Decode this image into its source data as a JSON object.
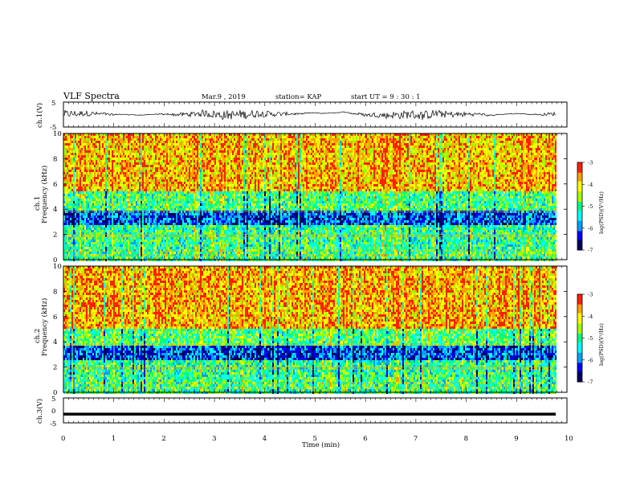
{
  "header": {
    "title": "VLF Spectra",
    "date": "Mar.9 , 2019",
    "station": "station= KAP",
    "start": "start UT = 9 : 30 : 1"
  },
  "chart_data": [
    {
      "type": "line",
      "panel": "ch1-waveform",
      "ylabel": "ch.1(V)",
      "ylim": [
        -5,
        5
      ],
      "yticks": [
        5,
        -5
      ],
      "xlim": [
        0,
        10
      ],
      "color": "#000000",
      "description_values": {
        "baseline_V": 0.1,
        "amplitude_V": 1.8
      }
    },
    {
      "type": "heatmap",
      "panel": "ch1-spectrogram",
      "ylabel": "Frequency (kHz)",
      "channel_label": "ch.1",
      "ylim": [
        0,
        10
      ],
      "yticks": [
        0,
        2,
        4,
        6,
        8,
        10
      ],
      "xlim": [
        0,
        10
      ],
      "colorbar": {
        "label": "log(PSD)(V²/Hz)",
        "ticks": [
          -3,
          -4,
          -5,
          -6,
          -7
        ],
        "range": [
          -7,
          -3
        ]
      },
      "bands_kHz": [
        {
          "from": 0,
          "to": 1.2,
          "level": -5.0
        },
        {
          "from": 1.2,
          "to": 2.8,
          "level": -5.1
        },
        {
          "from": 2.8,
          "to": 3.8,
          "level": -6.2
        },
        {
          "from": 3.8,
          "to": 5.4,
          "level": -5.0
        },
        {
          "from": 5.4,
          "to": 10,
          "level": -3.9
        }
      ]
    },
    {
      "type": "heatmap",
      "panel": "ch2-spectrogram",
      "ylabel": "Frequency (kHz)",
      "channel_label": "ch.2",
      "ylim": [
        0,
        10
      ],
      "yticks": [
        0,
        2,
        4,
        6,
        8,
        10
      ],
      "xlim": [
        0,
        10
      ],
      "colorbar": {
        "label": "log(PSD)(V²/Hz)",
        "ticks": [
          -3,
          -4,
          -5,
          -6,
          -7
        ],
        "range": [
          -7,
          -3
        ]
      },
      "bands_kHz": [
        {
          "from": 0,
          "to": 1.2,
          "level": -5.0
        },
        {
          "from": 1.2,
          "to": 2.6,
          "level": -5.1
        },
        {
          "from": 2.6,
          "to": 3.6,
          "level": -6.2
        },
        {
          "from": 3.6,
          "to": 5.0,
          "level": -4.9
        },
        {
          "from": 5.0,
          "to": 10,
          "level": -3.8
        }
      ]
    },
    {
      "type": "line",
      "panel": "ch3-waveform",
      "ylabel": "ch.3(V)",
      "ylim": [
        -5,
        5
      ],
      "yticks": [
        5,
        0,
        -5
      ],
      "xlim": [
        0,
        10
      ],
      "constant_V": -1.5,
      "color": "#000000",
      "xlabel": "Time (min)",
      "xticks": [
        0,
        1,
        2,
        3,
        4,
        5,
        6,
        7,
        8,
        9,
        10
      ]
    }
  ],
  "colors": {
    "line": "#000000",
    "colormap": [
      "#000060",
      "#0000ff",
      "#00a0ff",
      "#00ffff",
      "#00ff80",
      "#a0ff00",
      "#ffff00",
      "#ffa000",
      "#ff2000",
      "#ffffff"
    ]
  }
}
